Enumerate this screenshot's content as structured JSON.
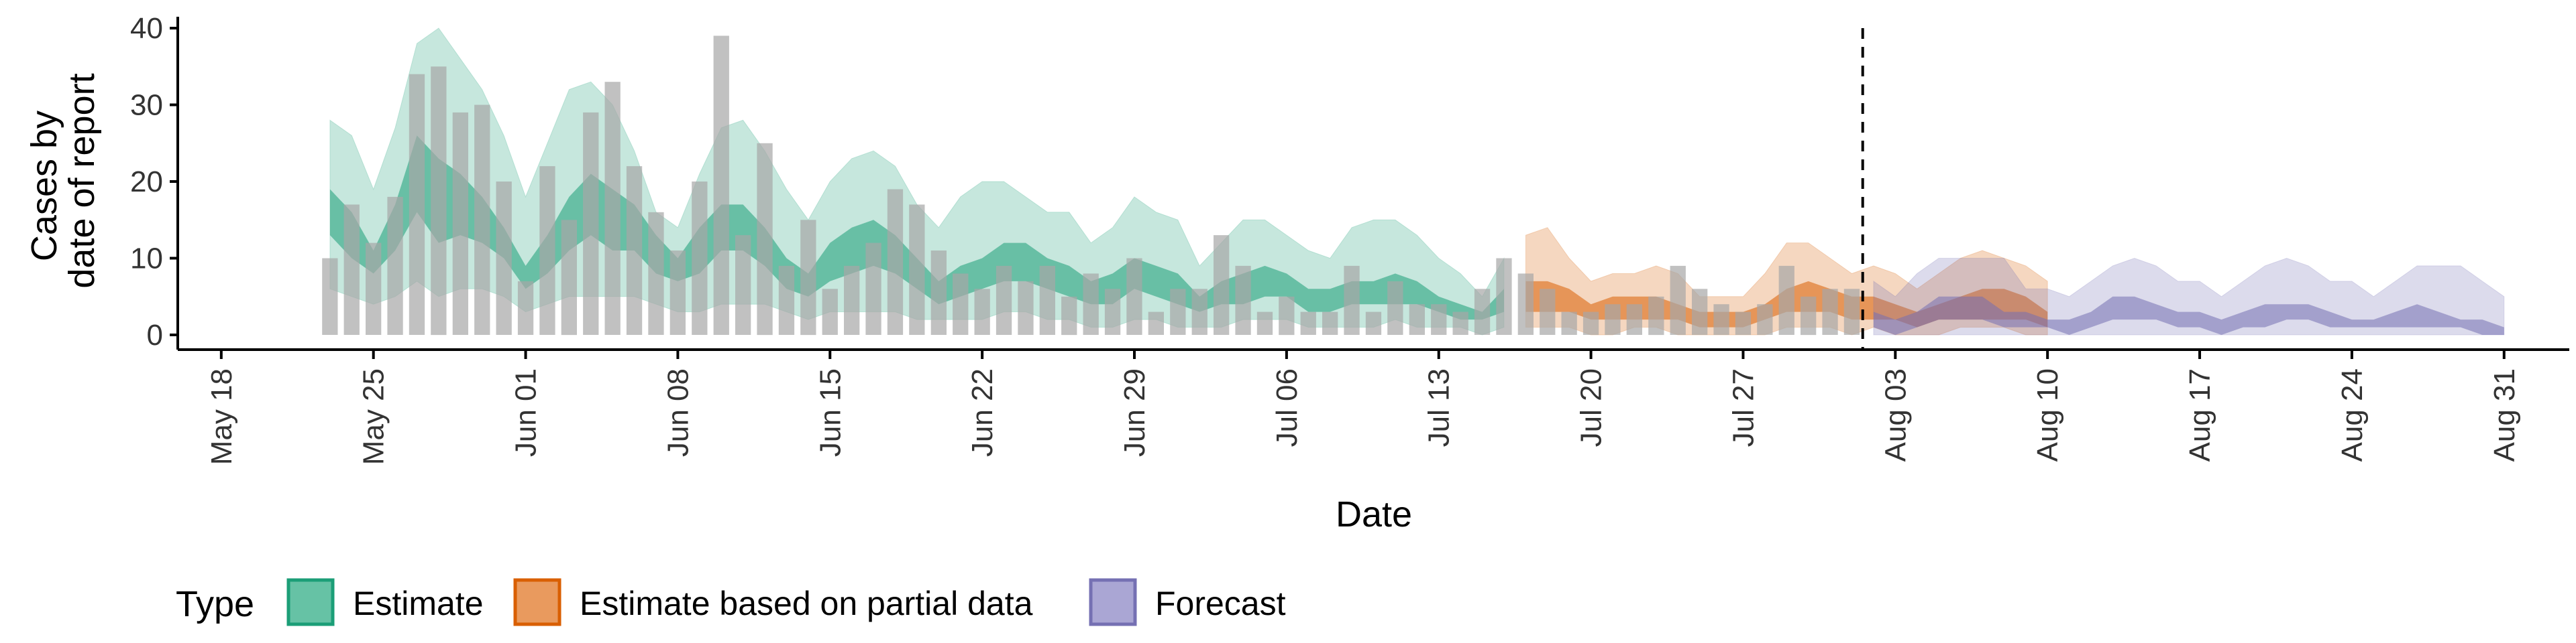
{
  "chart_data": {
    "type": "area",
    "xlabel": "Date",
    "ylabel_line1": "Cases by",
    "ylabel_line2": "date of report",
    "ylim": [
      0,
      40
    ],
    "y_ticks": [
      0,
      10,
      20,
      30,
      40
    ],
    "y_tick_labels": [
      "0",
      "10",
      "20",
      "30",
      "40"
    ],
    "x_ticks": [
      {
        "date": "2020-05-18",
        "label": "May 18"
      },
      {
        "date": "2020-05-25",
        "label": "May 25"
      },
      {
        "date": "2020-06-01",
        "label": "Jun 01"
      },
      {
        "date": "2020-06-08",
        "label": "Jun 08"
      },
      {
        "date": "2020-06-15",
        "label": "Jun 15"
      },
      {
        "date": "2020-06-22",
        "label": "Jun 22"
      },
      {
        "date": "2020-06-29",
        "label": "Jun 29"
      },
      {
        "date": "2020-07-06",
        "label": "Jul 06"
      },
      {
        "date": "2020-07-13",
        "label": "Jul 13"
      },
      {
        "date": "2020-07-20",
        "label": "Jul 20"
      },
      {
        "date": "2020-07-27",
        "label": "Jul 27"
      },
      {
        "date": "2020-08-03",
        "label": "Aug 03"
      },
      {
        "date": "2020-08-10",
        "label": "Aug 10"
      },
      {
        "date": "2020-08-17",
        "label": "Aug 17"
      },
      {
        "date": "2020-08-24",
        "label": "Aug 24"
      },
      {
        "date": "2020-08-31",
        "label": "Aug 31"
      }
    ],
    "xlim": [
      "2020-05-16",
      "2020-09-03"
    ],
    "forecast_date": "2020-08-01",
    "legend": {
      "title": "Type",
      "position": "bottom",
      "items": [
        {
          "label": "Estimate",
          "fill": "#66C2A5",
          "stroke": "#1B9E77"
        },
        {
          "label": "Estimate based on partial data",
          "fill": "#E99A5E",
          "stroke": "#D95F02"
        },
        {
          "label": "Forecast",
          "fill": "#AAA6D4",
          "stroke": "#7570B3"
        }
      ]
    },
    "colors": {
      "estimate": "#1B9E77",
      "partial": "#D95F02",
      "forecast": "#7570B3",
      "bars": "#A6A6A6"
    },
    "reported_cases": {
      "start_date": "2020-05-23",
      "values": [
        10,
        17,
        12,
        18,
        34,
        35,
        29,
        30,
        20,
        7,
        22,
        15,
        29,
        33,
        22,
        16,
        11,
        20,
        39,
        13,
        25,
        9,
        15,
        6,
        9,
        12,
        19,
        17,
        11,
        8,
        6,
        9,
        7,
        9,
        5,
        8,
        6,
        10,
        3,
        6,
        6,
        13,
        9,
        3,
        5,
        3,
        3,
        9,
        3,
        7,
        4,
        4,
        3,
        6,
        10,
        8,
        6,
        3,
        3,
        4,
        4,
        5,
        9,
        6,
        4,
        3,
        4,
        9,
        5,
        6,
        6
      ]
    },
    "series": [
      {
        "name": "Estimate",
        "start_date": "2020-05-23",
        "upper90": [
          28,
          26,
          19,
          27,
          38,
          40,
          36,
          32,
          26,
          18,
          25,
          32,
          33,
          30,
          24,
          16,
          14,
          21,
          27,
          28,
          24,
          19,
          15,
          20,
          23,
          24,
          22,
          17,
          14,
          18,
          20,
          20,
          18,
          16,
          16,
          12,
          14,
          18,
          16,
          15,
          9,
          12,
          15,
          15,
          13,
          11,
          10,
          14,
          15,
          15,
          13,
          10,
          8,
          5,
          10
        ],
        "upper50": [
          19,
          16,
          11,
          17,
          26,
          23,
          21,
          18,
          14,
          9,
          13,
          18,
          21,
          19,
          17,
          13,
          10,
          14,
          17,
          17,
          14,
          10,
          8,
          12,
          14,
          15,
          13,
          10,
          7,
          9,
          10,
          12,
          12,
          10,
          9,
          7,
          8,
          10,
          9,
          8,
          5,
          7,
          8,
          9,
          8,
          6,
          6,
          7,
          7,
          8,
          7,
          5,
          4,
          3,
          6
        ],
        "lower50": [
          13,
          10,
          8,
          11,
          16,
          12,
          13,
          12,
          10,
          6,
          8,
          11,
          13,
          11,
          11,
          8,
          7,
          8,
          11,
          11,
          9,
          6,
          5,
          7,
          8,
          9,
          8,
          6,
          4,
          5,
          6,
          7,
          7,
          6,
          5,
          4,
          4,
          6,
          5,
          4,
          3,
          4,
          4,
          5,
          5,
          3,
          3,
          4,
          4,
          4,
          4,
          3,
          2,
          2,
          3
        ],
        "lower90": [
          6,
          5,
          4,
          5,
          7,
          5,
          6,
          6,
          5,
          3,
          4,
          5,
          5,
          5,
          5,
          4,
          3,
          3,
          4,
          4,
          4,
          3,
          2,
          3,
          3,
          3,
          3,
          2,
          2,
          2,
          2,
          3,
          3,
          2,
          2,
          1,
          1,
          2,
          2,
          1,
          1,
          1,
          2,
          2,
          2,
          1,
          1,
          1,
          1,
          2,
          1,
          1,
          1,
          0,
          1
        ]
      },
      {
        "name": "Estimate based on partial data",
        "start_date": "2020-07-17",
        "upper90": [
          13,
          14,
          10,
          7,
          8,
          8,
          9,
          8,
          5,
          5,
          5,
          8,
          12,
          12,
          10,
          8,
          9,
          8,
          6,
          8,
          10,
          11,
          10,
          9,
          7
        ],
        "upper50": [
          7,
          7,
          6,
          4,
          5,
          5,
          5,
          4,
          3,
          3,
          3,
          4,
          6,
          7,
          6,
          5,
          5,
          4,
          3,
          4,
          5,
          6,
          6,
          5,
          3
        ],
        "lower50": [
          3,
          3,
          3,
          2,
          2,
          2,
          2,
          2,
          1,
          1,
          1,
          2,
          3,
          3,
          3,
          2,
          2,
          2,
          1,
          2,
          2,
          2,
          2,
          2,
          1
        ],
        "lower90": [
          1,
          1,
          1,
          0,
          0,
          1,
          1,
          0,
          0,
          0,
          0,
          0,
          1,
          1,
          1,
          0,
          1,
          0,
          0,
          0,
          1,
          1,
          1,
          0,
          0
        ]
      },
      {
        "name": "Forecast",
        "start_date": "2020-08-02",
        "upper90": [
          7,
          5,
          8,
          10,
          10,
          10,
          10,
          6,
          6,
          5,
          7,
          9,
          10,
          9,
          7,
          7,
          5,
          7,
          9,
          10,
          9,
          7,
          7,
          5,
          7,
          9,
          9,
          9,
          7,
          5
        ],
        "upper50": [
          3,
          2,
          3,
          5,
          5,
          5,
          3,
          3,
          2,
          2,
          3,
          5,
          5,
          4,
          3,
          3,
          2,
          3,
          4,
          4,
          4,
          3,
          2,
          2,
          3,
          4,
          3,
          2,
          2,
          1
        ],
        "lower50": [
          1,
          0,
          1,
          2,
          2,
          2,
          1,
          1,
          1,
          0,
          1,
          2,
          2,
          2,
          1,
          1,
          0,
          1,
          1,
          2,
          2,
          1,
          1,
          1,
          1,
          1,
          1,
          1,
          0,
          0
        ],
        "lower90": [
          0,
          0,
          0,
          0,
          0,
          0,
          0,
          0,
          0,
          0,
          0,
          0,
          0,
          0,
          0,
          0,
          0,
          0,
          0,
          0,
          0,
          0,
          0,
          0,
          0,
          0,
          0,
          0,
          0,
          0
        ]
      }
    ]
  }
}
